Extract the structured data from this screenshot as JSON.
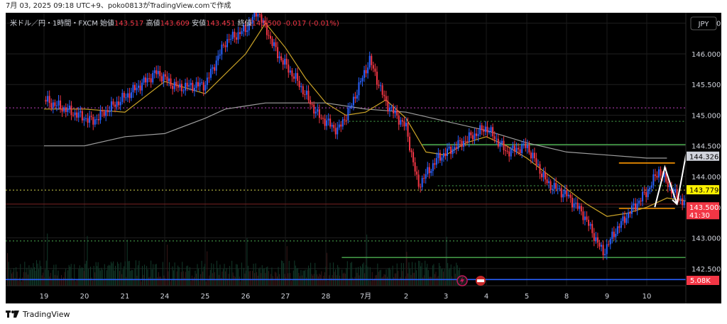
{
  "caption": "7月 03, 2025 09:18 UTC+9、poko0813がTradingView.comで作成",
  "footer": {
    "brand": "TradingView"
  },
  "colors": {
    "background": "#000000",
    "candle_up": "#2962ff",
    "candle_down": "#f23645",
    "ma_short": "#c9a227",
    "ma_long": "#9e9e9e",
    "hline_green": "#4caf50",
    "hline_orange": "#ff9800",
    "hline_magenta": "#c040c0",
    "hline_red": "#f23645",
    "hline_blue": "#2962ff",
    "arrow": "#ffffff"
  },
  "chart_data": {
    "type": "candlestick",
    "legend": {
      "symbol": "米ドル／円・1時間・FXCM",
      "open_label": "始値",
      "open": "143.517",
      "high_label": "高値",
      "high": "143.609",
      "low_label": "安値",
      "low": "143.451",
      "close_label": "終値",
      "close": "143.500",
      "change": "-0.017 (-0.01%)"
    },
    "currency": "JPY",
    "y_ticks": [
      "142.500",
      "143.000",
      "143.500",
      "144.000",
      "144.500",
      "145.000",
      "145.500",
      "146.000",
      "146.500"
    ],
    "ylim": [
      142.22,
      146.67
    ],
    "x_ticks": [
      "19",
      "20",
      "21",
      "24",
      "25",
      "26",
      "27",
      "28",
      "7月",
      "2",
      "3",
      "4",
      "5",
      "8",
      "9",
      "10"
    ],
    "price_tags": [
      {
        "value": 144.326,
        "label": "144.326",
        "style": "gray"
      },
      {
        "value": 143.779,
        "label": "143.779",
        "style": "yellow"
      },
      {
        "value": 143.5,
        "label": "143.500",
        "sub": "41:30",
        "style": "red"
      }
    ],
    "volume_tag": "5.08K",
    "price_path": [
      [
        0,
        145.25
      ],
      [
        1.2,
        144.9
      ],
      [
        2.2,
        145.4
      ],
      [
        2.8,
        145.7
      ],
      [
        3.3,
        145.45
      ],
      [
        4,
        145.5
      ],
      [
        4.5,
        146.2
      ],
      [
        5,
        146.4
      ],
      [
        5.3,
        146.7
      ],
      [
        5.8,
        146.0
      ],
      [
        6.3,
        145.55
      ],
      [
        6.8,
        145.0
      ],
      [
        7.3,
        144.75
      ],
      [
        7.6,
        145.1
      ],
      [
        8.1,
        145.9
      ],
      [
        8.5,
        145.2
      ],
      [
        9,
        144.8
      ],
      [
        9.3,
        143.85
      ],
      [
        9.8,
        144.3
      ],
      [
        10.5,
        144.6
      ],
      [
        11,
        144.8
      ],
      [
        11.5,
        144.4
      ],
      [
        12,
        144.5
      ],
      [
        12.5,
        143.9
      ],
      [
        13,
        143.7
      ],
      [
        13.4,
        143.4
      ],
      [
        13.9,
        142.75
      ],
      [
        14.2,
        143.1
      ],
      [
        14.6,
        143.45
      ],
      [
        15,
        143.75
      ],
      [
        15.3,
        144.1
      ],
      [
        15.7,
        143.7
      ],
      [
        16,
        143.55
      ],
      [
        16.4,
        143.5
      ]
    ],
    "ma_short": [
      [
        0,
        145.1
      ],
      [
        1,
        145.1
      ],
      [
        2,
        145.05
      ],
      [
        3,
        145.55
      ],
      [
        4,
        145.35
      ],
      [
        5,
        146.0
      ],
      [
        5.5,
        146.5
      ],
      [
        6,
        146.1
      ],
      [
        6.5,
        145.6
      ],
      [
        7,
        145.2
      ],
      [
        7.5,
        145.0
      ],
      [
        8,
        145.05
      ],
      [
        8.5,
        145.25
      ],
      [
        9,
        144.95
      ],
      [
        9.5,
        144.4
      ],
      [
        10,
        144.35
      ],
      [
        10.5,
        144.55
      ],
      [
        11,
        144.65
      ],
      [
        11.5,
        144.5
      ],
      [
        12,
        144.3
      ],
      [
        12.5,
        144.05
      ],
      [
        13,
        143.8
      ],
      [
        13.5,
        143.55
      ],
      [
        14,
        143.35
      ],
      [
        14.5,
        143.4
      ],
      [
        15,
        143.5
      ],
      [
        15.5,
        143.65
      ],
      [
        16,
        143.6
      ]
    ],
    "ma_long": [
      [
        0,
        144.5
      ],
      [
        1,
        144.5
      ],
      [
        2,
        144.65
      ],
      [
        3,
        144.7
      ],
      [
        4,
        144.95
      ],
      [
        4.5,
        145.1
      ],
      [
        5,
        145.15
      ],
      [
        5.5,
        145.2
      ],
      [
        6,
        145.2
      ],
      [
        7,
        145.2
      ],
      [
        8,
        145.1
      ],
      [
        9,
        145.05
      ],
      [
        10,
        144.9
      ],
      [
        11,
        144.75
      ],
      [
        12,
        144.55
      ],
      [
        13,
        144.4
      ],
      [
        14,
        144.35
      ],
      [
        15,
        144.3
      ],
      [
        15.5,
        144.3
      ]
    ],
    "hlines": [
      {
        "value": 145.12,
        "from": 0,
        "to": 17,
        "style": "magenta-dotted"
      },
      {
        "value": 144.9,
        "from": 7.4,
        "to": 17,
        "style": "green-dotted"
      },
      {
        "value": 144.52,
        "from": 9.4,
        "to": 17,
        "style": "green"
      },
      {
        "value": 144.22,
        "from": 14.3,
        "to": 15.7,
        "style": "orange"
      },
      {
        "value": 143.85,
        "from": 9.8,
        "to": 16.2,
        "style": "green-dotted"
      },
      {
        "value": 143.779,
        "from": 0,
        "to": 17,
        "style": "yellow-dotted"
      },
      {
        "value": 143.55,
        "from": 0,
        "to": 17,
        "style": "red-thin"
      },
      {
        "value": 143.48,
        "from": 14.3,
        "to": 15.7,
        "style": "orange"
      },
      {
        "value": 142.95,
        "from": 0,
        "to": 17,
        "style": "green-dotted"
      },
      {
        "value": 142.68,
        "from": 7.4,
        "to": 17,
        "style": "green"
      },
      {
        "value": 142.32,
        "from": 0,
        "to": 17,
        "style": "blue"
      }
    ],
    "scenario_arrow": [
      [
        15.2,
        143.5
      ],
      [
        15.45,
        144.15
      ],
      [
        15.75,
        143.55
      ],
      [
        16.0,
        144.45
      ],
      [
        16.45,
        143.6
      ]
    ]
  }
}
